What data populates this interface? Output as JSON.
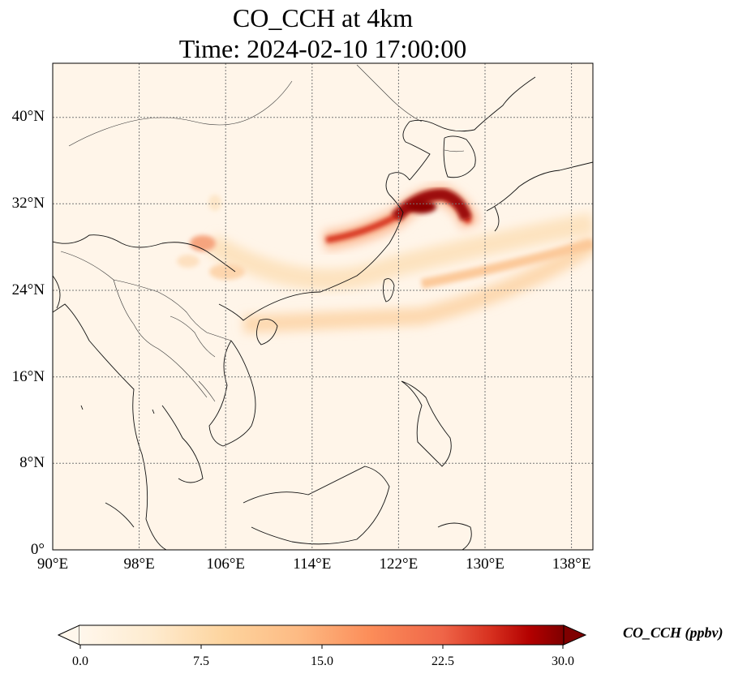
{
  "title": {
    "line1": "CO_CCH at 4km",
    "line2": "Time: 2024-02-10 17:00:00"
  },
  "map": {
    "lon_range": [
      90,
      140
    ],
    "lat_range": [
      0,
      45
    ],
    "lat_ticks": [
      {
        "value": 40,
        "label": "40°N"
      },
      {
        "value": 32,
        "label": "32°N"
      },
      {
        "value": 24,
        "label": "24°N"
      },
      {
        "value": 16,
        "label": "16°N"
      },
      {
        "value": 8,
        "label": "8°N"
      },
      {
        "value": 0,
        "label": "0°"
      }
    ],
    "lon_ticks": [
      {
        "value": 90,
        "label": "90°E"
      },
      {
        "value": 98,
        "label": "98°E"
      },
      {
        "value": 106,
        "label": "106°E"
      },
      {
        "value": 114,
        "label": "114°E"
      },
      {
        "value": 122,
        "label": "122°E"
      },
      {
        "value": 130,
        "label": "130°E"
      },
      {
        "value": 138,
        "label": "138°E"
      }
    ],
    "gridlines": true,
    "background_color": "#fff5e9"
  },
  "colorbar": {
    "label": "CO_CCH (ppbv)",
    "range": [
      0,
      30
    ],
    "ticks": [
      "0.0",
      "7.5",
      "15.0",
      "22.5",
      "30.0"
    ],
    "colormap": "OrRd",
    "extend": "both"
  }
}
